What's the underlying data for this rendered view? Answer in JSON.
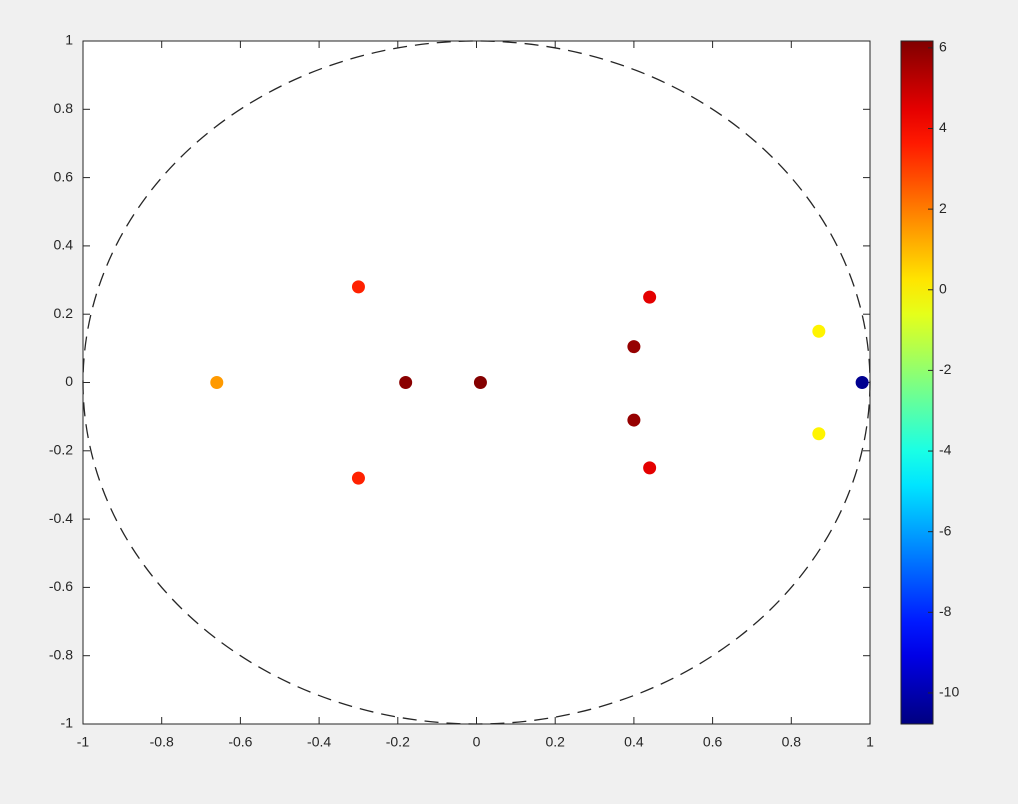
{
  "chart_data": {
    "type": "scatter",
    "x": [
      -0.66,
      -0.3,
      -0.3,
      -0.18,
      0.01,
      0.4,
      0.4,
      0.44,
      0.44,
      0.87,
      0.87,
      0.98
    ],
    "y": [
      0,
      0.28,
      -0.28,
      0,
      0,
      0.105,
      -0.11,
      0.25,
      -0.25,
      0.15,
      -0.15,
      0
    ],
    "c": [
      1.5,
      3.5,
      3.5,
      6,
      6.1,
      5.8,
      5.8,
      4.5,
      4.5,
      0,
      0,
      -10.5
    ],
    "colormap": "jet",
    "xlim": [
      -1,
      1
    ],
    "ylim": [
      -1,
      1
    ],
    "xticks": [
      -1,
      -0.8,
      -0.6,
      -0.4,
      -0.2,
      0,
      0.2,
      0.4,
      0.6,
      0.8,
      1
    ],
    "yticks": [
      -1,
      -0.8,
      -0.6,
      -0.4,
      -0.2,
      0,
      0.2,
      0.4,
      0.6,
      0.8,
      1
    ],
    "clim": [
      -10.77,
      6.17
    ],
    "cticks": [
      -10,
      -8,
      -6,
      -4,
      -2,
      0,
      2,
      4,
      6
    ],
    "unit_circle": true
  }
}
